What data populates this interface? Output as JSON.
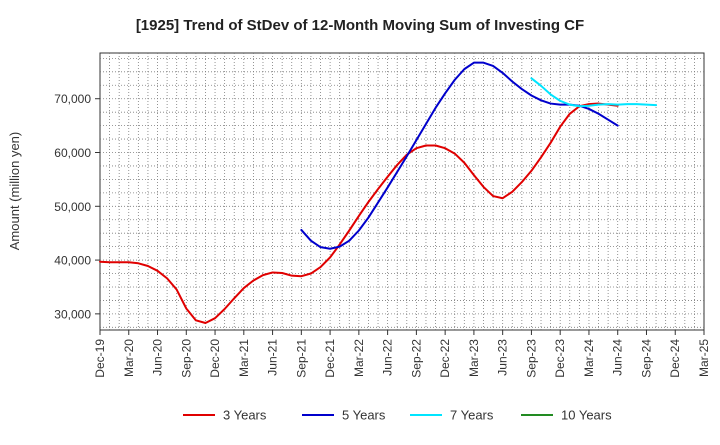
{
  "chart_data": {
    "type": "line",
    "title": "[1925]  Trend of StDev of 12-Month Moving Sum of Investing CF",
    "ylabel": "Amount (million yen)",
    "xlabel": "",
    "x_ticks": [
      "Dec-19",
      "Mar-20",
      "Jun-20",
      "Sep-20",
      "Dec-20",
      "Mar-21",
      "Jun-21",
      "Sep-21",
      "Dec-21",
      "Mar-22",
      "Jun-22",
      "Sep-22",
      "Dec-22",
      "Mar-23",
      "Jun-23",
      "Sep-23",
      "Dec-23",
      "Mar-24",
      "Jun-24",
      "Sep-24",
      "Dec-24",
      "Mar-25"
    ],
    "y_ticks": [
      30000,
      40000,
      50000,
      60000,
      70000
    ],
    "y_tick_labels": [
      "30,000",
      "40,000",
      "50,000",
      "60,000",
      "70,000"
    ],
    "ylim": [
      27000,
      78500
    ],
    "grid": true,
    "legend_position": "bottom",
    "series": [
      {
        "name": "3 Years",
        "color": "#e00000",
        "start": 0,
        "values": [
          39700,
          39600,
          39600,
          39600,
          39400,
          38900,
          38000,
          36600,
          34500,
          31000,
          28800,
          28300,
          29200,
          30900,
          32900,
          34800,
          36200,
          37200,
          37700,
          37600,
          37100,
          37000,
          37500,
          38700,
          40500,
          42900,
          45500,
          48200,
          50800,
          53200,
          55500,
          57700,
          59600,
          60800,
          61300,
          61300,
          60800,
          59800,
          58100,
          55800,
          53600,
          51900,
          51500,
          52700,
          54500,
          56600,
          59100,
          61800,
          64800,
          67200,
          68600,
          69000,
          69100,
          68900,
          68700
        ]
      },
      {
        "name": "5 Years",
        "color": "#0000cc",
        "start": 21,
        "values": [
          45600,
          43600,
          42400,
          42100,
          42500,
          43600,
          45500,
          47900,
          50700,
          53500,
          56400,
          59300,
          62300,
          65300,
          68300,
          71000,
          73500,
          75500,
          76700,
          76700,
          76100,
          74800,
          73200,
          71800,
          70600,
          69700,
          69100,
          68900,
          68900,
          68700,
          68100,
          67200,
          66100,
          65000
        ]
      },
      {
        "name": "7 Years",
        "color": "#00e5ff",
        "start": 45,
        "values": [
          73800,
          72400,
          70800,
          69600,
          68900,
          68600,
          68700,
          68900,
          69000,
          68900,
          69000,
          69000,
          68900,
          68800
        ]
      },
      {
        "name": "10 Years",
        "color": "#228b22",
        "start": 0,
        "values": []
      }
    ]
  }
}
